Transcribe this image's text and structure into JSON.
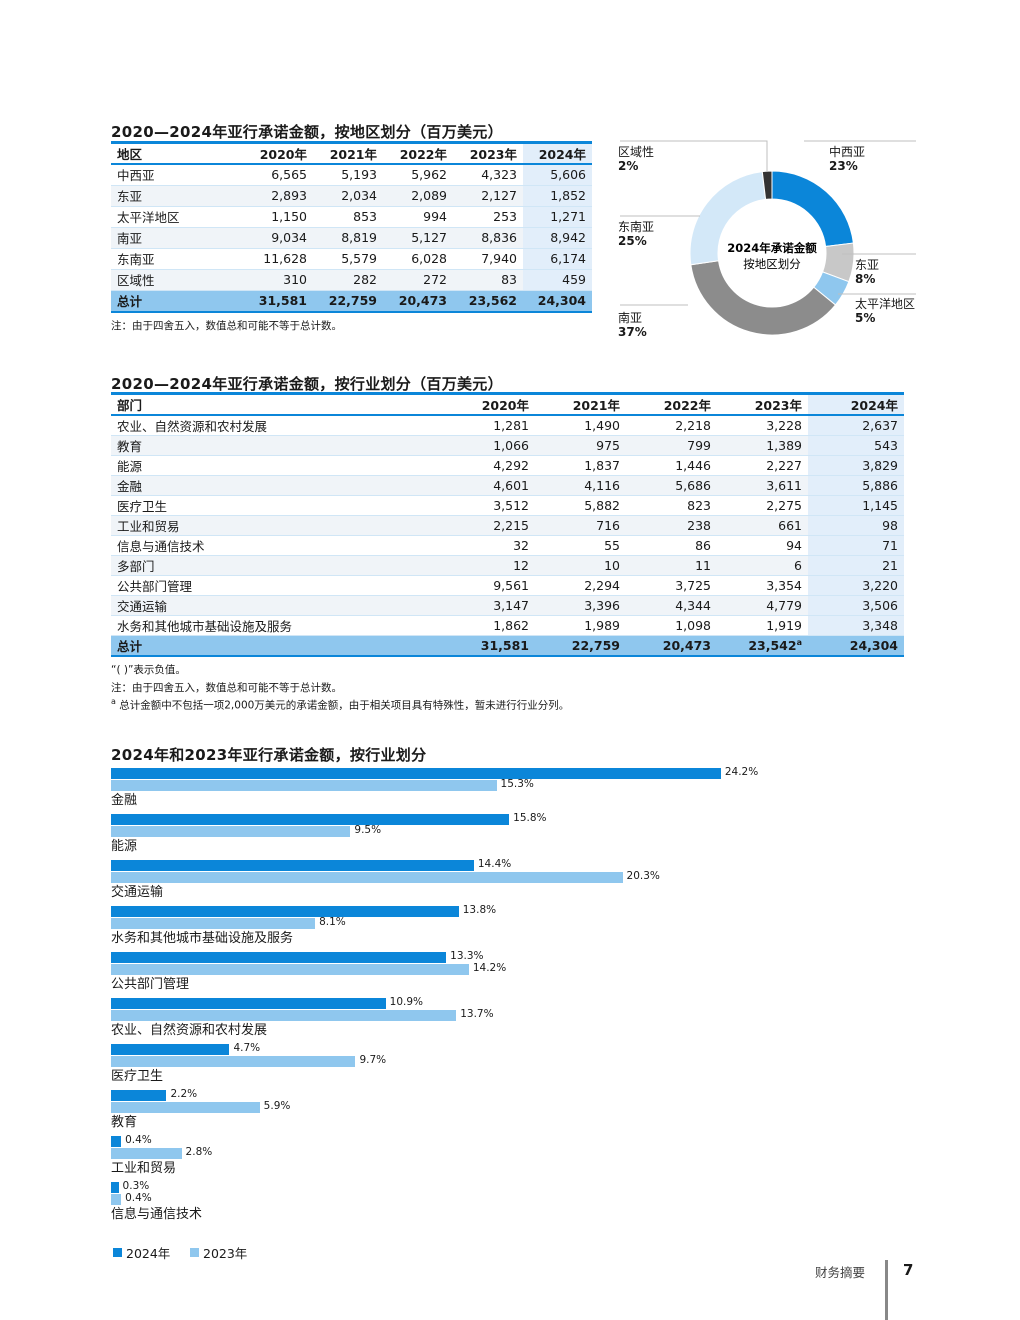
{
  "region_section": {
    "title": "2020—2024年亚行承诺金额，按地区划分（百万美元）",
    "header": [
      "地区",
      "2020年",
      "2021年",
      "2022年",
      "2023年",
      "2024年"
    ],
    "rows": [
      [
        "中西亚",
        "6,565",
        "5,193",
        "5,962",
        "4,323",
        "5,606"
      ],
      [
        "东亚",
        "2,893",
        "2,034",
        "2,089",
        "2,127",
        "1,852"
      ],
      [
        "太平洋地区",
        "1,150",
        "853",
        "994",
        "253",
        "1,271"
      ],
      [
        "南亚",
        "9,034",
        "8,819",
        "5,127",
        "8,836",
        "8,942"
      ],
      [
        "东南亚",
        "11,628",
        "5,579",
        "6,028",
        "7,940",
        "6,174"
      ],
      [
        "区域性",
        "310",
        "282",
        "272",
        "83",
        "459"
      ]
    ],
    "total": [
      "总计",
      "31,581",
      "22,759",
      "20,473",
      "23,562",
      "24,304"
    ],
    "note": "注：由于四舍五入，数值总和可能不等于总计数。"
  },
  "donut": {
    "center_line1": "2024年承诺金额",
    "center_line2": "按地区划分",
    "slices": [
      {
        "name": "中西亚",
        "pct_label": "23%",
        "value": 5606,
        "color": "#0b86d9"
      },
      {
        "name": "东亚",
        "pct_label": "8%",
        "value": 1852,
        "color": "#c8c8c8"
      },
      {
        "name": "太平洋地区",
        "pct_label": "5%",
        "value": 1271,
        "color": "#8fc7ee"
      },
      {
        "name": "南亚",
        "pct_label": "37%",
        "value": 8942,
        "color": "#8c8c8c"
      },
      {
        "name": "东南亚",
        "pct_label": "25%",
        "value": 6174,
        "color": "#d3e8f8"
      },
      {
        "name": "区域性",
        "pct_label": "2%",
        "value": 459,
        "color": "#333333"
      }
    ]
  },
  "sector_section": {
    "title": "2020—2024年亚行承诺金额，按行业划分（百万美元）",
    "header": [
      "部门",
      "2020年",
      "2021年",
      "2022年",
      "2023年",
      "2024年"
    ],
    "rows": [
      [
        "农业、自然资源和农村发展",
        "1,281",
        "1,490",
        "2,218",
        "3,228",
        "2,637"
      ],
      [
        "教育",
        "1,066",
        "975",
        "799",
        "1,389",
        "543"
      ],
      [
        "能源",
        "4,292",
        "1,837",
        "1,446",
        "2,227",
        "3,829"
      ],
      [
        "金融",
        "4,601",
        "4,116",
        "5,686",
        "3,611",
        "5,886"
      ],
      [
        "医疗卫生",
        "3,512",
        "5,882",
        "823",
        "2,275",
        "1,145"
      ],
      [
        "工业和贸易",
        "2,215",
        "716",
        "238",
        "661",
        "98"
      ],
      [
        "信息与通信技术",
        "32",
        "55",
        "86",
        "94",
        "71"
      ],
      [
        "多部门",
        "12",
        "10",
        "11",
        "6",
        "21"
      ],
      [
        "公共部门管理",
        "9,561",
        "2,294",
        "3,725",
        "3,354",
        "3,220"
      ],
      [
        "交通运输",
        "3,147",
        "3,396",
        "4,344",
        "4,779",
        "3,506"
      ],
      [
        "水务和其他城市基础设施及服务",
        "1,862",
        "1,989",
        "1,098",
        "1,919",
        "3,348"
      ]
    ],
    "total": [
      "总计",
      "31,581",
      "22,759",
      "20,473",
      "23,542",
      "24,304"
    ],
    "total_sup": "a",
    "note1": "“( )”表示负值。",
    "note2": "注：由于四舍五入，数值总和可能不等于总计数。",
    "note3_marker": "a",
    "note3": "总计金额中不包括一项2,000万美元的承诺金额，由于相关项目具有特殊性，暂未进行行业分列。"
  },
  "bar_section": {
    "title": "2024年和2023年亚行承诺金额，按行业划分",
    "legend": [
      "2024年",
      "2023年"
    ]
  },
  "chart_data": {
    "type": "bar",
    "orientation": "horizontal",
    "categories": [
      "金融",
      "能源",
      "交通运输",
      "水务和其他城市基础设施及服务",
      "公共部门管理",
      "农业、自然资源和农村发展",
      "医疗卫生",
      "教育",
      "工业和贸易",
      "信息与通信技术"
    ],
    "series": [
      {
        "name": "2024年",
        "values": [
          24.2,
          15.8,
          14.4,
          13.8,
          13.3,
          10.9,
          4.7,
          2.2,
          0.4,
          0.3
        ],
        "labels": [
          "24.2%",
          "15.8%",
          "14.4%",
          "13.8%",
          "13.3%",
          "10.9%",
          "4.7%",
          "2.2%",
          "0.4%",
          "0.3%"
        ],
        "color": "#0b86d9"
      },
      {
        "name": "2023年",
        "values": [
          15.3,
          9.5,
          20.3,
          8.1,
          14.2,
          13.7,
          9.7,
          5.9,
          2.8,
          0.4
        ],
        "labels": [
          "15.3%",
          "9.5%",
          "20.3%",
          "8.1%",
          "14.2%",
          "13.7%",
          "9.7%",
          "5.9%",
          "2.8%",
          "0.4%"
        ],
        "color": "#8fc7ee"
      }
    ],
    "title": "2024年和2023年亚行承诺金额，按行业划分",
    "legend_position": "bottom-left",
    "grid": false
  },
  "footer": {
    "section_name": "财务摘要",
    "page_number": "7"
  }
}
